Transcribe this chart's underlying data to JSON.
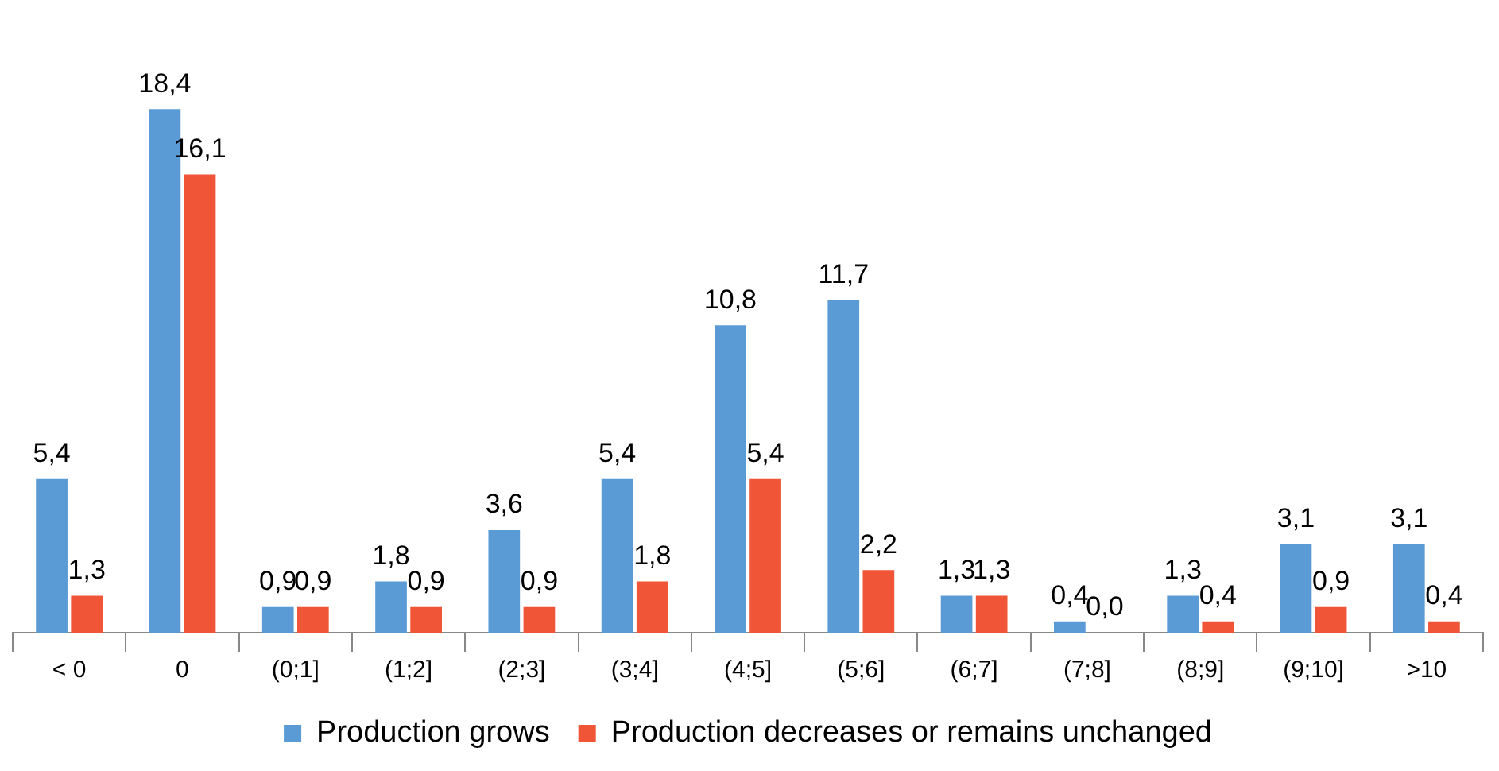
{
  "chart_data": {
    "type": "bar",
    "categories": [
      "< 0",
      "0",
      "(0;1]",
      "(1;2]",
      "(2;3]",
      "(3;4]",
      "(4;5]",
      "(5;6]",
      "(6;7]",
      "(7;8]",
      "(8;9]",
      "(9;10]",
      ">10"
    ],
    "series": [
      {
        "name": "Production grows",
        "color": "#5b9bd5",
        "values": [
          5.4,
          18.4,
          0.9,
          1.8,
          3.6,
          5.4,
          10.8,
          11.7,
          1.3,
          0.4,
          1.3,
          3.1,
          3.1
        ],
        "value_labels": [
          "5,4",
          "18,4",
          "0,9",
          "1,8",
          "3,6",
          "5,4",
          "10,8",
          "11,7",
          "1,3",
          "0,4",
          "1,3",
          "3,1",
          "3,1"
        ]
      },
      {
        "name": "Production decreases or remains unchanged",
        "color": "#f05537",
        "values": [
          1.3,
          16.1,
          0.9,
          0.9,
          0.9,
          1.8,
          5.4,
          2.2,
          1.3,
          0.0,
          0.4,
          0.9,
          0.4
        ],
        "value_labels": [
          "1,3",
          "16,1",
          "0,9",
          "0,9",
          "0,9",
          "1,8",
          "5,4",
          "2,2",
          "1,3",
          "0,0",
          "0,4",
          "0,9",
          "0,4"
        ]
      }
    ],
    "legend": "bottom",
    "grid": false
  }
}
